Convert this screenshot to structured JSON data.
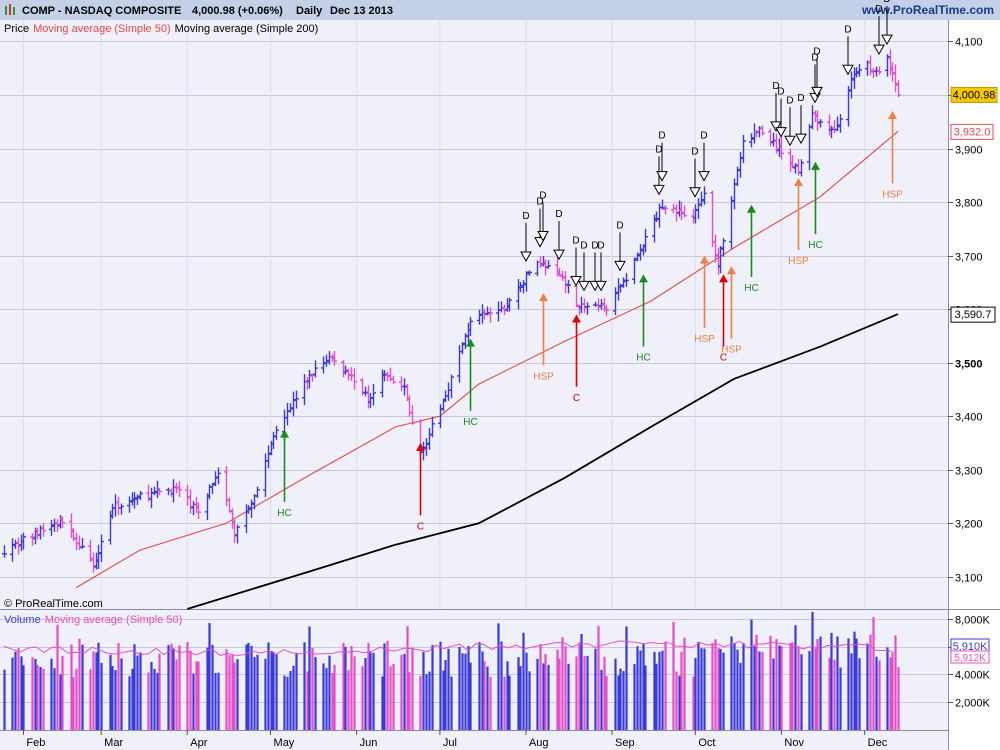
{
  "header": {
    "symbol": "COMP - NASDAQ COMPOSITE",
    "last": "4,000.98 (+0.06%)",
    "period": "Daily",
    "date": "Dec 13 2013",
    "brand": "www.ProRealTime.com",
    "copyright": "© ProRealTime.com"
  },
  "price_legend": {
    "price": "Price",
    "ma50": "Moving average (Simple 50)",
    "ma200": "Moving average (Simple 200)"
  },
  "volume_legend": {
    "volume": "Volume",
    "ma50": "Moving average (Simple 50)"
  },
  "price_badges": {
    "last": "4,000.98",
    "ma50": "3,932.0",
    "ma200": "3,590.7"
  },
  "volume_badges": {
    "last": "5,910K",
    "ma": "5,912K"
  },
  "colors": {
    "up": "#3a3ad8",
    "down": "#e64ec8",
    "ma50": "#e84848",
    "ma200": "#000000",
    "grid": "#c8c8dc",
    "bg": "#f0f0fa",
    "hc": "#1a8a1a",
    "c": "#e00000",
    "hsp": "#f08040"
  },
  "chart_data": [
    {
      "type": "ohlc",
      "x_axis": {
        "type": "date",
        "start": "2013-01-25",
        "end": "2013-12-13",
        "months": [
          "Feb",
          "Mar",
          "Apr",
          "May",
          "Jun",
          "Jul",
          "Aug",
          "Sep",
          "Oct",
          "Nov",
          "Dec"
        ]
      },
      "y_axis": {
        "range": [
          3040,
          4140
        ],
        "ticks": [
          3100,
          3200,
          3300,
          3400,
          3500,
          3600,
          3700,
          3800,
          3900,
          4000,
          4100
        ],
        "tick_labels": [
          "3,100",
          "3,200",
          "3,300",
          "3,400",
          "3,500",
          "3,600",
          "3,700",
          "3,800",
          "3,900",
          "4,000",
          "4,100"
        ]
      },
      "price_path": [
        [
          "2013-01-25",
          3150
        ],
        [
          "2013-02-05",
          3180
        ],
        [
          "2013-02-15",
          3205
        ],
        [
          "2013-02-26",
          3120
        ],
        [
          "2013-03-05",
          3230
        ],
        [
          "2013-03-15",
          3250
        ],
        [
          "2013-03-28",
          3265
        ],
        [
          "2013-04-05",
          3220
        ],
        [
          "2013-04-12",
          3300
        ],
        [
          "2013-04-18",
          3180
        ],
        [
          "2013-04-26",
          3265
        ],
        [
          "2013-05-03",
          3380
        ],
        [
          "2013-05-15",
          3475
        ],
        [
          "2013-05-22",
          3510
        ],
        [
          "2013-05-31",
          3470
        ],
        [
          "2013-06-05",
          3430
        ],
        [
          "2013-06-10",
          3480
        ],
        [
          "2013-06-18",
          3450
        ],
        [
          "2013-06-24",
          3330
        ],
        [
          "2013-07-03",
          3440
        ],
        [
          "2013-07-12",
          3580
        ],
        [
          "2013-07-24",
          3600
        ],
        [
          "2013-08-05",
          3690
        ],
        [
          "2013-08-14",
          3660
        ],
        [
          "2013-08-20",
          3605
        ],
        [
          "2013-08-30",
          3605
        ],
        [
          "2013-09-05",
          3650
        ],
        [
          "2013-09-12",
          3720
        ],
        [
          "2013-09-19",
          3795
        ],
        [
          "2013-09-30",
          3770
        ],
        [
          "2013-10-04",
          3810
        ],
        [
          "2013-10-09",
          3680
        ],
        [
          "2013-10-18",
          3910
        ],
        [
          "2013-10-24",
          3935
        ],
        [
          "2013-11-07",
          3860
        ],
        [
          "2013-11-12",
          3960
        ],
        [
          "2013-11-20",
          3930
        ],
        [
          "2013-11-27",
          4040
        ],
        [
          "2013-12-02",
          4060
        ],
        [
          "2013-12-05",
          4040
        ],
        [
          "2013-12-09",
          4065
        ],
        [
          "2013-12-13",
          4001
        ]
      ],
      "series": [
        {
          "name": "Moving average (Simple 50)",
          "points": [
            [
              "2013-02-20",
              3080
            ],
            [
              "2013-03-15",
              3150
            ],
            [
              "2013-04-15",
              3200
            ],
            [
              "2013-05-15",
              3290
            ],
            [
              "2013-06-15",
              3380
            ],
            [
              "2013-07-01",
              3400
            ],
            [
              "2013-07-15",
              3460
            ],
            [
              "2013-08-15",
              3540
            ],
            [
              "2013-09-15",
              3615
            ],
            [
              "2013-10-15",
              3715
            ],
            [
              "2013-11-15",
              3810
            ],
            [
              "2013-12-13",
              3932
            ]
          ]
        },
        {
          "name": "Moving average (Simple 200)",
          "points": [
            [
              "2013-04-01",
              3040
            ],
            [
              "2013-05-15",
              3110
            ],
            [
              "2013-06-15",
              3160
            ],
            [
              "2013-07-15",
              3200
            ],
            [
              "2013-08-15",
              3285
            ],
            [
              "2013-09-15",
              3380
            ],
            [
              "2013-10-15",
              3470
            ],
            [
              "2013-11-15",
              3530
            ],
            [
              "2013-12-13",
              3590.7
            ]
          ]
        }
      ],
      "d_markers": [
        "2013-08-01",
        "2013-08-06",
        "2013-08-07",
        "2013-08-13",
        "2013-08-19",
        "2013-08-22",
        "2013-08-26",
        "2013-08-28",
        "2013-09-04",
        "2013-09-18",
        "2013-09-19",
        "2013-10-01",
        "2013-10-04",
        "2013-10-30",
        "2013-11-01",
        "2013-11-04",
        "2013-11-08",
        "2013-11-13",
        "2013-11-14",
        "2013-11-25",
        "2013-12-06",
        "2013-12-09"
      ],
      "signals": [
        {
          "label": "HC",
          "date": "2013-05-06",
          "base": 3240,
          "tip": 3375,
          "kind": "hc"
        },
        {
          "label": "C",
          "date": "2013-06-24",
          "base": 3215,
          "tip": 3350,
          "kind": "c"
        },
        {
          "label": "HC",
          "date": "2013-07-12",
          "base": 3410,
          "tip": 3545,
          "kind": "hc"
        },
        {
          "label": "HSP",
          "date": "2013-08-07",
          "base": 3495,
          "tip": 3630,
          "kind": "hsp"
        },
        {
          "label": "C",
          "date": "2013-08-19",
          "base": 3455,
          "tip": 3590,
          "kind": "c"
        },
        {
          "label": "HC",
          "date": "2013-09-12",
          "base": 3530,
          "tip": 3665,
          "kind": "hc"
        },
        {
          "label": "HSP",
          "date": "2013-10-04",
          "base": 3565,
          "tip": 3700,
          "kind": "hsp"
        },
        {
          "label": "C",
          "date": "2013-10-11",
          "base": 3530,
          "tip": 3665,
          "kind": "c"
        },
        {
          "label": "HSP",
          "date": "2013-10-14",
          "base": 3545,
          "tip": 3680,
          "kind": "hsp"
        },
        {
          "label": "HC",
          "date": "2013-10-21",
          "base": 3660,
          "tip": 3795,
          "kind": "hc"
        },
        {
          "label": "HSP",
          "date": "2013-11-07",
          "base": 3710,
          "tip": 3845,
          "kind": "hsp"
        },
        {
          "label": "HC",
          "date": "2013-11-13",
          "base": 3740,
          "tip": 3875,
          "kind": "hc"
        },
        {
          "label": "HSP",
          "date": "2013-12-11",
          "base": 3835,
          "tip": 3970,
          "kind": "hsp"
        }
      ]
    },
    {
      "type": "bar",
      "title": "Volume",
      "y_axis": {
        "range": [
          0,
          8500
        ],
        "ticks": [
          2000,
          4000,
          6000,
          8000
        ],
        "tick_labels": [
          "2,000K",
          "4,000K",
          "6,000K",
          "8,000K"
        ]
      },
      "series": [
        {
          "name": "Moving average (Simple 50)",
          "approx_level": 5900
        }
      ]
    }
  ]
}
